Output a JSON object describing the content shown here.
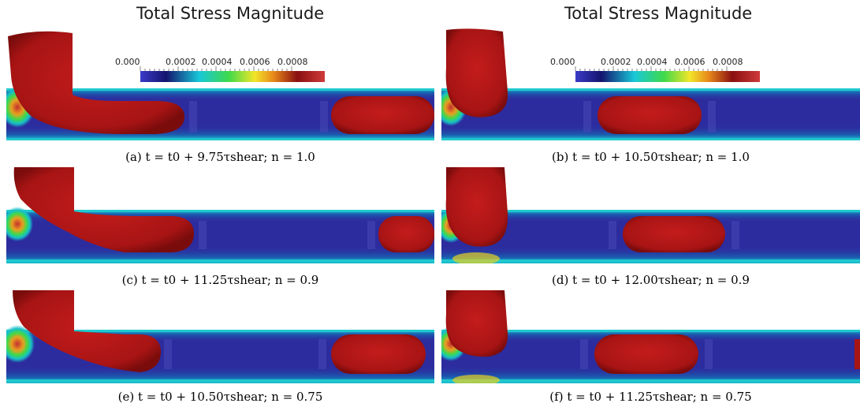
{
  "figure": {
    "title_left": "Total Stress Magnitude",
    "title_right": "Total Stress Magnitude",
    "colorbar": {
      "ticks": [
        "0.000",
        "0.0002",
        "0.0004",
        "0.0006",
        "0.0008"
      ],
      "colors": [
        "#3b3bc8",
        "#14146e",
        "#18c8d8",
        "#3fd94a",
        "#f2e62a",
        "#e88a1a",
        "#8a1010",
        "#cf3a3a"
      ]
    },
    "colors": {
      "droplet": "#b01616",
      "channel": "#2c2c9e",
      "wall_high": "#18c0c8"
    },
    "panels": [
      {
        "id": "a",
        "caption": "(a) t = t0 + 9.75τshear; n = 1.0"
      },
      {
        "id": "b",
        "caption": "(b) t = t0 + 10.50τshear; n = 1.0"
      },
      {
        "id": "c",
        "caption": "(c) t = t0 + 11.25τshear; n = 0.9"
      },
      {
        "id": "d",
        "caption": "(d) t = t0 + 12.00τshear; n = 0.9"
      },
      {
        "id": "e",
        "caption": "(e) t = t0 + 10.50τshear; n = 0.75"
      },
      {
        "id": "f",
        "caption": "(f) t = t0 + 11.25τshear; n = 0.75"
      }
    ]
  }
}
